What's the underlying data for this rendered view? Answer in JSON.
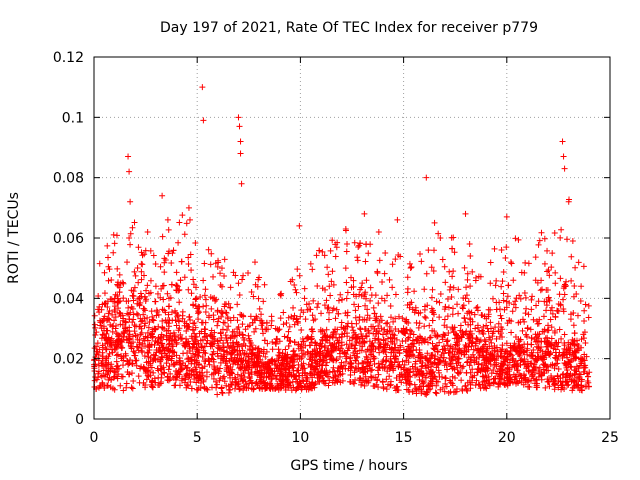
{
  "chart_data": {
    "type": "scatter",
    "title": "Day 197 of 2021, Rate Of TEC Index for receiver p779",
    "xlabel": "GPS time / hours",
    "ylabel": "ROTI / TECUs",
    "xlim": [
      0,
      25
    ],
    "ylim": [
      0,
      0.12
    ],
    "xticks": [
      0,
      5,
      10,
      15,
      20,
      25
    ],
    "yticks": [
      0,
      0.02,
      0.04,
      0.06,
      0.08,
      0.1,
      0.12
    ],
    "xtick_labels": [
      "0",
      "5",
      "10",
      "15",
      "20",
      "25"
    ],
    "ytick_labels": [
      "0",
      "0.02",
      "0.04",
      "0.06",
      "0.08",
      "0.1",
      "0.12"
    ],
    "grid": true,
    "marker": "+",
    "color": "#ff0000",
    "series": [
      {
        "name": "ROTI",
        "x": [
          0.0,
          0.1,
          0.2,
          0.3,
          0.4,
          0.5,
          0.6,
          0.7,
          0.8,
          0.9,
          1.0,
          1.1,
          1.2,
          1.3,
          1.4,
          1.5,
          1.6,
          1.7,
          1.8,
          1.9,
          2.0,
          2.2,
          2.4,
          2.6,
          2.8,
          3.0,
          3.2,
          3.4,
          3.6,
          3.8,
          4.0,
          4.2,
          4.4,
          4.6,
          4.8,
          5.0,
          5.2,
          5.4,
          5.6,
          5.8,
          6.0,
          6.2,
          6.4,
          6.6,
          6.8,
          7.0,
          7.2,
          7.4,
          7.6,
          7.8,
          8.0,
          8.2,
          8.4,
          8.6,
          8.8,
          9.0,
          9.2,
          9.4,
          9.6,
          9.8,
          10.0,
          10.2,
          10.4,
          10.6,
          10.8,
          11.0,
          11.2,
          11.4,
          11.6,
          11.8,
          12.0,
          12.2,
          12.4,
          12.6,
          12.8,
          13.0,
          13.2,
          13.4,
          13.6,
          13.8,
          14.0,
          14.2,
          14.4,
          14.6,
          14.8,
          15.0,
          15.2,
          15.4,
          15.6,
          15.8,
          16.0,
          16.2,
          16.4,
          16.6,
          16.8,
          17.0,
          17.2,
          17.4,
          17.6,
          17.8,
          18.0,
          18.2,
          18.4,
          18.6,
          18.8,
          19.0,
          19.2,
          19.4,
          19.6,
          19.8,
          20.0,
          20.2,
          20.4,
          20.6,
          20.8,
          21.0,
          21.2,
          21.4,
          21.6,
          21.8,
          22.0,
          22.2,
          22.4,
          22.6,
          22.8,
          23.0,
          23.2,
          23.4,
          23.6,
          23.8,
          23.95,
          1.65,
          1.7,
          1.75,
          5.25,
          5.3,
          7.0,
          7.05,
          7.1,
          7.1,
          7.15,
          3.3,
          4.6,
          4.65,
          16.1,
          22.7,
          22.75,
          22.8,
          23.0,
          13.1,
          9.95,
          14.7,
          12.2,
          16.5,
          18.0,
          20.0
        ],
        "y": [
          0.018,
          0.024,
          0.015,
          0.031,
          0.012,
          0.027,
          0.02,
          0.035,
          0.016,
          0.022,
          0.04,
          0.019,
          0.026,
          0.045,
          0.014,
          0.03,
          0.052,
          0.06,
          0.025,
          0.033,
          0.021,
          0.038,
          0.017,
          0.062,
          0.028,
          0.044,
          0.019,
          0.036,
          0.023,
          0.055,
          0.031,
          0.016,
          0.047,
          0.025,
          0.038,
          0.021,
          0.029,
          0.043,
          0.018,
          0.033,
          0.026,
          0.05,
          0.019,
          0.037,
          0.023,
          0.045,
          0.028,
          0.017,
          0.034,
          0.052,
          0.021,
          0.039,
          0.025,
          0.016,
          0.03,
          0.022,
          0.014,
          0.027,
          0.019,
          0.033,
          0.024,
          0.04,
          0.018,
          0.029,
          0.015,
          0.035,
          0.021,
          0.044,
          0.017,
          0.026,
          0.032,
          0.05,
          0.02,
          0.038,
          0.057,
          0.024,
          0.046,
          0.019,
          0.035,
          0.062,
          0.028,
          0.041,
          0.022,
          0.053,
          0.018,
          0.03,
          0.047,
          0.021,
          0.036,
          0.016,
          0.043,
          0.056,
          0.025,
          0.039,
          0.019,
          0.033,
          0.022,
          0.049,
          0.017,
          0.027,
          0.04,
          0.058,
          0.023,
          0.036,
          0.018,
          0.031,
          0.045,
          0.02,
          0.029,
          0.016,
          0.037,
          0.052,
          0.024,
          0.041,
          0.019,
          0.03,
          0.022,
          0.046,
          0.017,
          0.034,
          0.025,
          0.055,
          0.021,
          0.038,
          0.028,
          0.019,
          0.059,
          0.026,
          0.044,
          0.017,
          0.012,
          0.087,
          0.082,
          0.072,
          0.11,
          0.099,
          0.1,
          0.097,
          0.092,
          0.088,
          0.078,
          0.074,
          0.07,
          0.066,
          0.08,
          0.092,
          0.087,
          0.083,
          0.072,
          0.068,
          0.064,
          0.066,
          0.063,
          0.065,
          0.068,
          0.067
        ]
      }
    ],
    "density_band": {
      "description_free": true,
      "hours_start": 0,
      "hours_end": 24,
      "floor_values": [
        0.01,
        0.009,
        0.011,
        0.008,
        0.01,
        0.009,
        0.012,
        0.01,
        0.008,
        0.009,
        0.011,
        0.01,
        0.009
      ],
      "typical_values": [
        0.02,
        0.024,
        0.026,
        0.022,
        0.025,
        0.021,
        0.023,
        0.019,
        0.017,
        0.016,
        0.018,
        0.02,
        0.022,
        0.024,
        0.023,
        0.021,
        0.019,
        0.02,
        0.022,
        0.019,
        0.018,
        0.02,
        0.021,
        0.02,
        0.016
      ],
      "upper_values": [
        0.036,
        0.045,
        0.048,
        0.042,
        0.05,
        0.044,
        0.04,
        0.035,
        0.033,
        0.03,
        0.036,
        0.04,
        0.046,
        0.045,
        0.042,
        0.038,
        0.04,
        0.044,
        0.04,
        0.037,
        0.041,
        0.04,
        0.045,
        0.048,
        0.035
      ]
    }
  }
}
